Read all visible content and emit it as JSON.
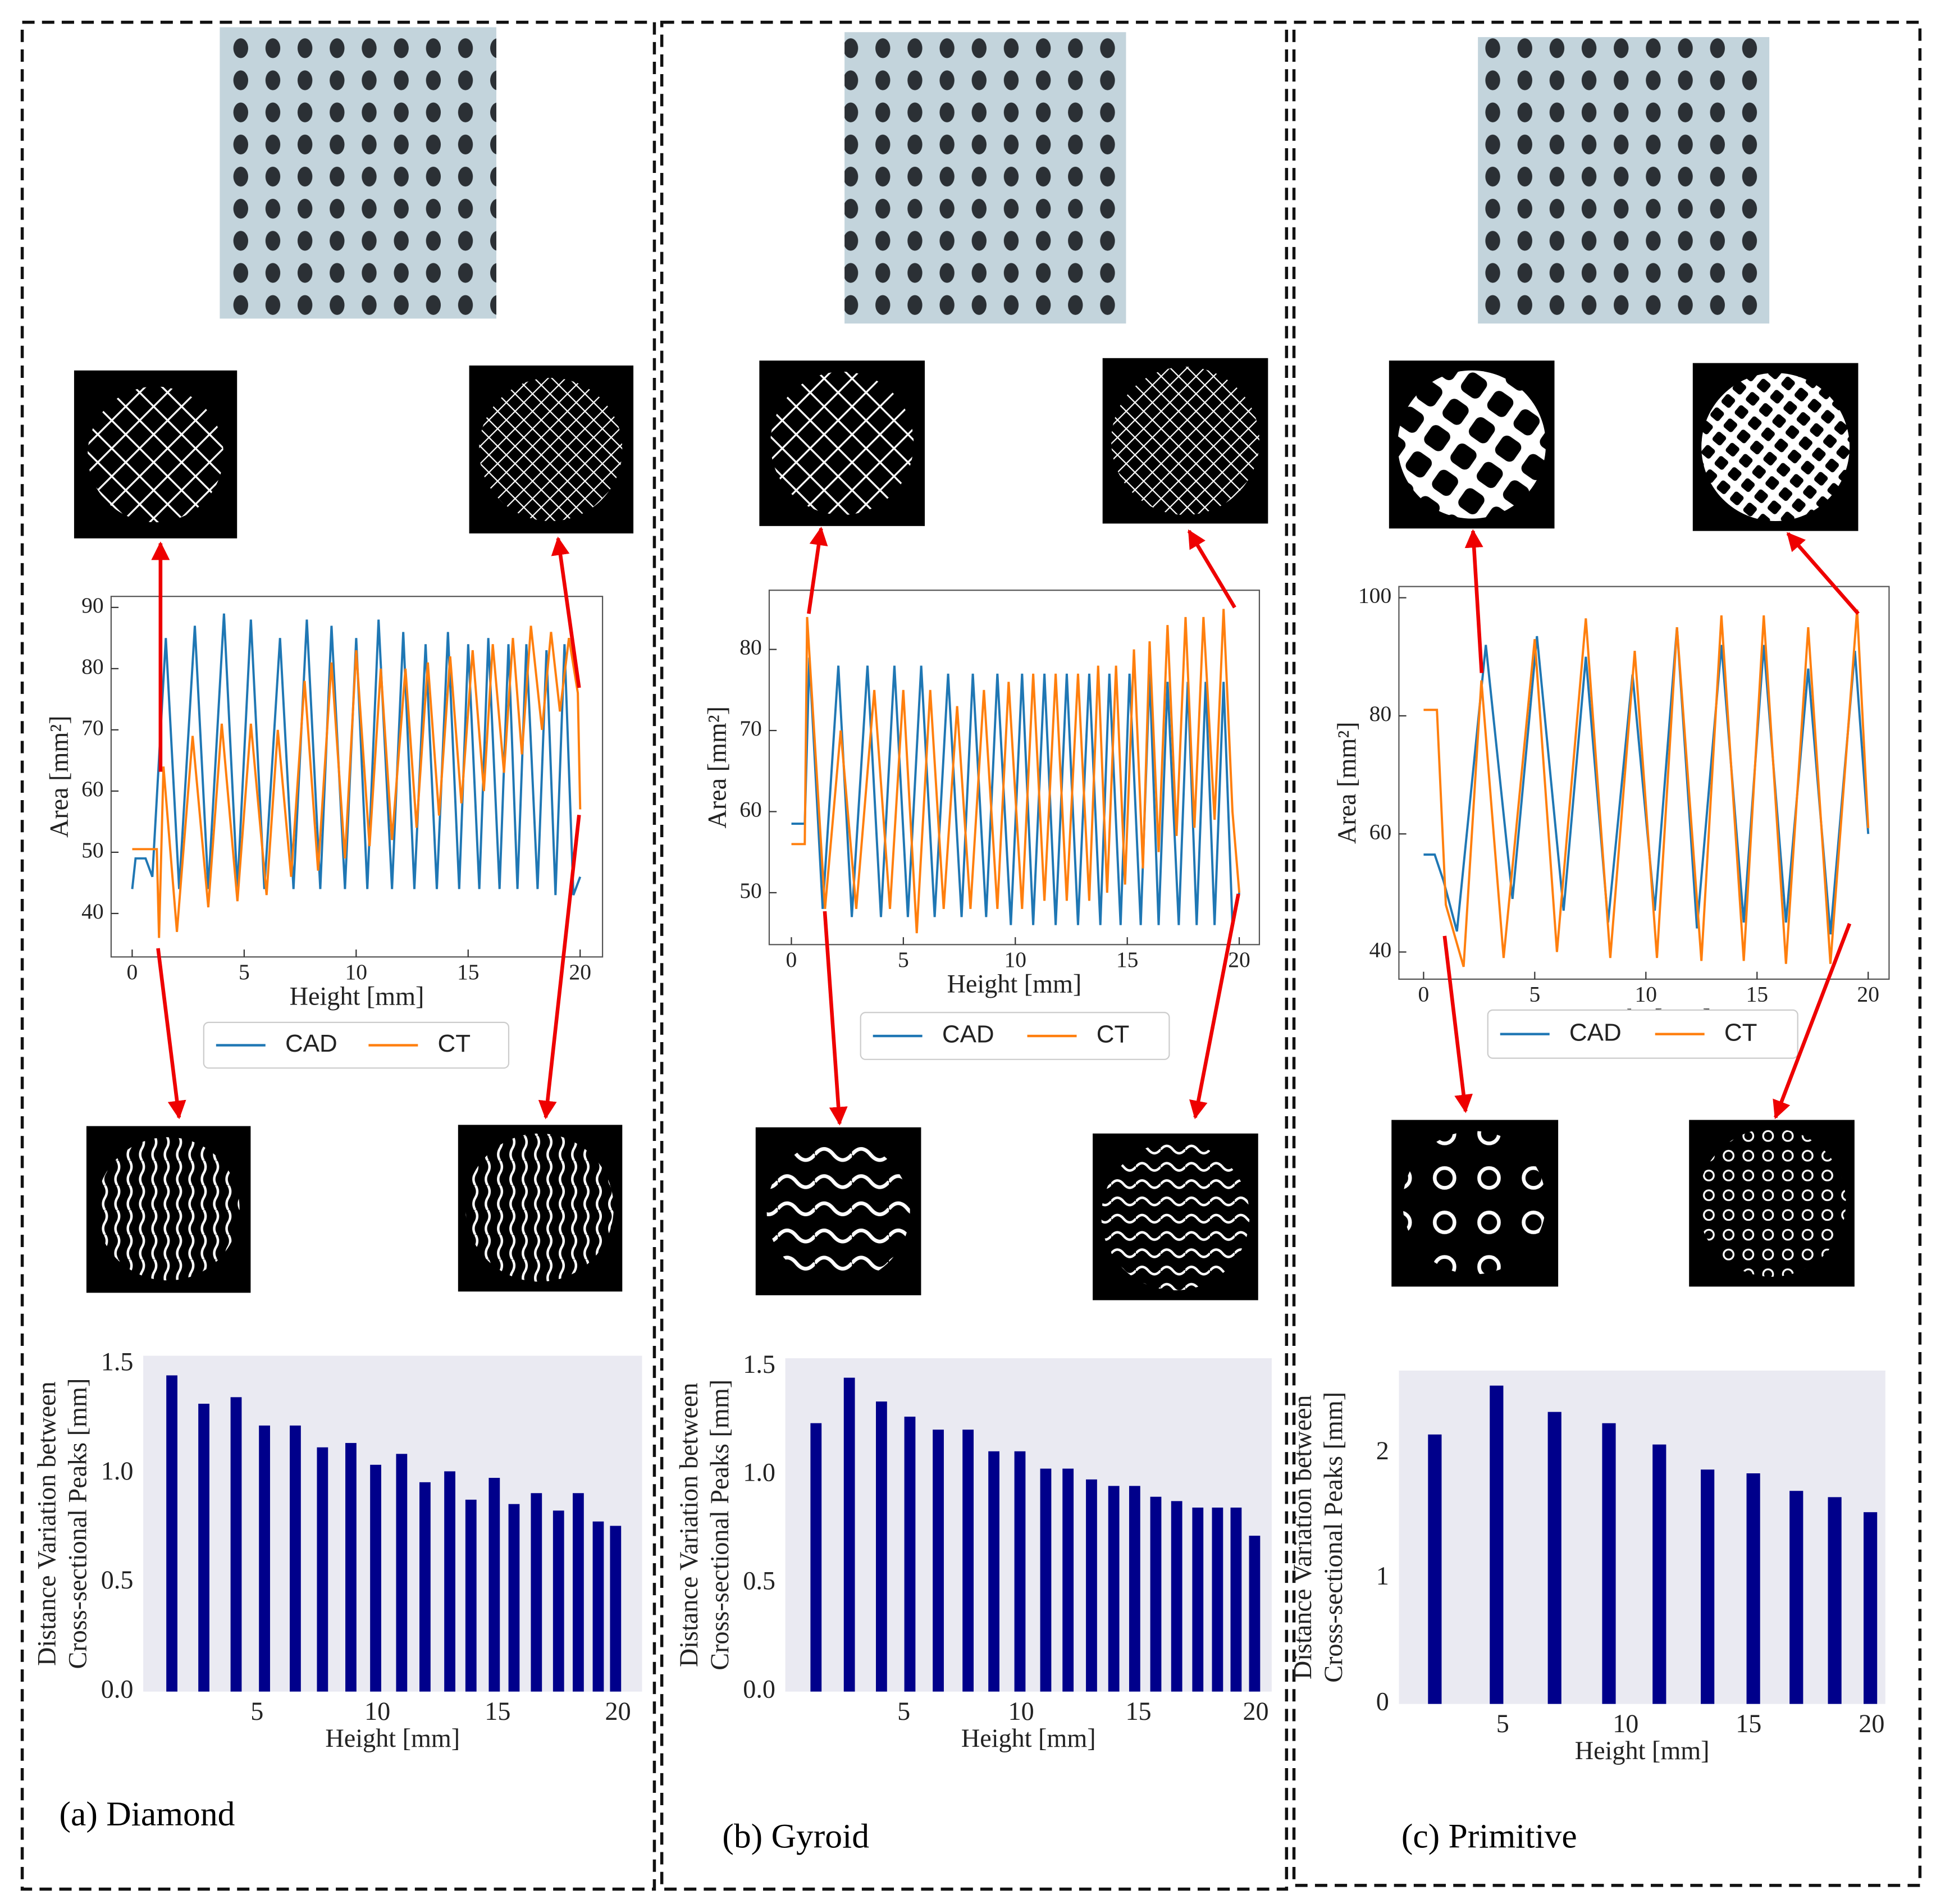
{
  "panels": [
    "(a) Diamond",
    "(b) Gyroid",
    "(c) Primitive"
  ],
  "chart_data": [
    {
      "type": "line",
      "xlabel": "Height [mm]",
      "ylabel": "Area [mm²]",
      "xlim": [
        -0.94,
        21
      ],
      "ylim": [
        32.9,
        91.8
      ],
      "xticks": [
        0,
        5,
        10,
        15,
        20
      ],
      "yticks": [
        40,
        50,
        60,
        70,
        80,
        90
      ],
      "legend": "below",
      "series": [
        {
          "name": "CAD",
          "color": "#1f77b4",
          "x": [
            0,
            0.15,
            0.6,
            0.9,
            1.5,
            2.1,
            2.8,
            3.4,
            4.1,
            4.7,
            5.3,
            5.9,
            6.6,
            7.2,
            7.8,
            8.4,
            8.9,
            9.5,
            10.0,
            10.5,
            11.0,
            11.6,
            12.1,
            12.6,
            13.1,
            13.6,
            14.1,
            14.6,
            15.0,
            15.5,
            15.9,
            16.4,
            16.8,
            17.2,
            17.6,
            18.1,
            18.5,
            18.9,
            19.3,
            19.7,
            20.0
          ],
          "values": [
            44,
            49,
            49,
            46,
            85,
            44,
            87,
            44,
            89,
            44,
            88,
            44,
            85,
            44,
            88,
            44,
            87,
            44,
            85,
            44,
            88,
            44,
            86,
            44,
            84,
            44,
            86,
            44,
            84,
            44,
            85,
            44,
            84,
            44,
            84,
            44,
            83,
            43,
            84,
            43,
            46
          ]
        },
        {
          "name": "CT",
          "color": "#ff7f0e",
          "x": [
            0,
            1.1,
            1.2,
            1.4,
            2.0,
            2.7,
            3.4,
            4.0,
            4.7,
            5.3,
            6.0,
            6.5,
            7.1,
            7.7,
            8.3,
            8.9,
            9.5,
            10.0,
            10.6,
            11.1,
            11.6,
            12.2,
            12.7,
            13.2,
            13.7,
            14.2,
            14.7,
            15.2,
            15.7,
            16.1,
            16.6,
            17.0,
            17.4,
            17.8,
            18.3,
            18.7,
            19.1,
            19.5,
            19.9,
            20.0
          ],
          "values": [
            50.5,
            50.5,
            36,
            64,
            37,
            69,
            41,
            71,
            42,
            71,
            43,
            70,
            46,
            78,
            47,
            81,
            49,
            83,
            51,
            80,
            52,
            80,
            54,
            81,
            56,
            82,
            58,
            83,
            60,
            84,
            63,
            85,
            66,
            87,
            70,
            86,
            73,
            85,
            76,
            57
          ]
        }
      ]
    },
    {
      "type": "bar",
      "xlabel": "Height [mm]",
      "ylabel": [
        "Distance Variation between",
        "Cross-sectional Peaks [mm]"
      ],
      "color": "#00008b",
      "xlim": [
        0.27,
        21
      ],
      "ylim": [
        0,
        1.54
      ],
      "xticks": [
        5,
        10,
        15,
        20
      ],
      "yticks": [
        {
          "value": 0,
          "label": "0.0"
        },
        {
          "value": 0.5,
          "label": "0.5"
        },
        {
          "value": 1,
          "label": "1.0"
        },
        {
          "value": 1.5,
          "label": "1.5"
        }
      ],
      "x": [
        1.46,
        2.79,
        4.13,
        5.31,
        6.59,
        7.72,
        8.9,
        9.93,
        11.01,
        11.98,
        13.01,
        13.89,
        14.86,
        15.68,
        16.61,
        17.53,
        18.35,
        19.18,
        19.9
      ],
      "values": [
        1.45,
        1.32,
        1.35,
        1.22,
        1.22,
        1.12,
        1.14,
        1.04,
        1.09,
        0.96,
        1.01,
        0.88,
        0.98,
        0.86,
        0.91,
        0.83,
        0.91,
        0.78,
        0.76
      ]
    },
    {
      "type": "line",
      "xlabel": "Height [mm]",
      "ylabel": "Area [mm²]",
      "xlim": [
        -0.99,
        20.9
      ],
      "ylim": [
        43.6,
        87.3
      ],
      "xticks": [
        0,
        5,
        10,
        15,
        20
      ],
      "yticks": [
        50,
        60,
        70,
        80
      ],
      "legend": "below",
      "series": [
        {
          "name": "CAD",
          "color": "#1f77b4",
          "x": [
            0,
            0.6,
            0.8,
            1.4,
            2.1,
            2.7,
            3.4,
            4.0,
            4.6,
            5.2,
            5.8,
            6.4,
            7.0,
            7.6,
            8.1,
            8.7,
            9.2,
            9.8,
            10.3,
            10.8,
            11.3,
            11.8,
            12.3,
            12.8,
            13.3,
            13.8,
            14.2,
            14.7,
            15.1,
            15.6,
            16.0,
            16.4,
            16.8,
            17.3,
            17.7,
            18.1,
            18.5,
            18.9,
            19.3,
            19.7,
            20.0
          ],
          "values": [
            58.5,
            58.5,
            79,
            48,
            78,
            47,
            78,
            47,
            78,
            47,
            78,
            47,
            77,
            47,
            77,
            47,
            77,
            46,
            77,
            46,
            77,
            46,
            77,
            46,
            77,
            46,
            77,
            46,
            77,
            46,
            77,
            46,
            76,
            46,
            76,
            46,
            76,
            46,
            76,
            46,
            50
          ]
        },
        {
          "name": "CT",
          "color": "#ff7f0e",
          "x": [
            0,
            0.6,
            0.7,
            1.5,
            2.2,
            2.9,
            3.7,
            4.4,
            5.0,
            5.6,
            6.2,
            6.8,
            7.4,
            8.0,
            8.6,
            9.2,
            9.7,
            10.3,
            10.8,
            11.3,
            11.8,
            12.3,
            12.8,
            13.3,
            13.7,
            14.1,
            14.5,
            14.9,
            15.3,
            15.7,
            16.0,
            16.4,
            16.8,
            17.2,
            17.6,
            18.0,
            18.4,
            18.9,
            19.3,
            19.7,
            20.0
          ],
          "values": [
            56,
            56,
            84,
            48,
            70,
            48,
            75,
            48,
            75,
            45,
            75,
            48,
            73,
            48,
            75,
            48,
            76,
            48,
            77,
            49,
            77,
            49,
            77,
            49,
            78,
            50,
            78,
            51,
            80,
            53,
            81,
            55,
            83,
            57,
            84,
            58,
            84,
            59,
            85,
            60,
            50
          ]
        }
      ]
    },
    {
      "type": "bar",
      "xlabel": "Height [mm]",
      "ylabel": [
        "Distance Variation between",
        "Cross-sectional Peaks [mm]"
      ],
      "color": "#00008b",
      "xlim": [
        -0.05,
        20.68
      ],
      "ylim": [
        0,
        1.54
      ],
      "xticks": [
        5,
        10,
        15,
        20
      ],
      "yticks": [
        {
          "value": 0,
          "label": "0.0"
        },
        {
          "value": 0.5,
          "label": "0.5"
        },
        {
          "value": 1,
          "label": "1.0"
        },
        {
          "value": 1.5,
          "label": "1.5"
        }
      ],
      "x": [
        1.26,
        2.68,
        4.05,
        5.26,
        6.47,
        7.74,
        8.84,
        9.95,
        11.05,
        12.0,
        13.0,
        13.95,
        14.84,
        15.74,
        16.63,
        17.53,
        18.37,
        19.16,
        19.95
      ],
      "values": [
        1.24,
        1.45,
        1.34,
        1.27,
        1.21,
        1.21,
        1.11,
        1.11,
        1.03,
        1.03,
        0.98,
        0.95,
        0.95,
        0.9,
        0.88,
        0.85,
        0.85,
        0.85,
        0.72
      ]
    },
    {
      "type": "line",
      "xlabel": "Height [mm]",
      "ylabel": "Area [mm²]",
      "xlim": [
        -1.11,
        20.94
      ],
      "ylim": [
        35.4,
        101.9
      ],
      "xticks": [
        0,
        5,
        10,
        15,
        20
      ],
      "yticks": [
        40,
        60,
        80,
        100
      ],
      "legend": "below",
      "series": [
        {
          "name": "CAD",
          "color": "#1f77b4",
          "x": [
            0,
            0.5,
            0.9,
            1.5,
            2.8,
            4.0,
            5.1,
            6.3,
            7.3,
            8.3,
            9.4,
            10.4,
            11.4,
            12.3,
            13.4,
            14.4,
            15.3,
            16.3,
            17.3,
            18.3,
            19.4,
            20.0
          ],
          "values": [
            56.5,
            56.5,
            52,
            43.5,
            92,
            49,
            93.5,
            47,
            90,
            45,
            87,
            47,
            95,
            44,
            92,
            45,
            92,
            45,
            88,
            43,
            91,
            60
          ]
        },
        {
          "name": "CT",
          "color": "#ff7f0e",
          "x": [
            0,
            0.6,
            1.0,
            1.8,
            2.6,
            3.6,
            5.0,
            6.0,
            7.3,
            8.4,
            9.5,
            10.5,
            11.4,
            12.5,
            13.4,
            14.4,
            15.3,
            16.3,
            17.3,
            18.3,
            19.5,
            20.0
          ],
          "values": [
            81,
            81,
            48,
            37.5,
            86,
            39,
            93,
            40,
            96.5,
            39,
            91,
            39,
            95,
            38.5,
            97,
            38.5,
            97,
            38,
            95,
            38,
            98,
            61
          ]
        }
      ]
    },
    {
      "type": "bar",
      "xlabel": "Height [mm]",
      "ylabel": [
        "Distance Variation between",
        "Cross-sectional Peaks [mm]"
      ],
      "color": "#00008b",
      "xlim": [
        0.78,
        20.56
      ],
      "ylim": [
        0,
        2.66
      ],
      "xticks": [
        5,
        10,
        15,
        20
      ],
      "yticks": [
        0,
        1,
        2
      ],
      "x": [
        2.24,
        4.75,
        7.11,
        9.32,
        11.37,
        13.33,
        15.19,
        16.94,
        18.5,
        19.95
      ],
      "values": [
        2.15,
        2.54,
        2.33,
        2.24,
        2.07,
        1.87,
        1.84,
        1.7,
        1.65,
        1.53
      ]
    }
  ]
}
